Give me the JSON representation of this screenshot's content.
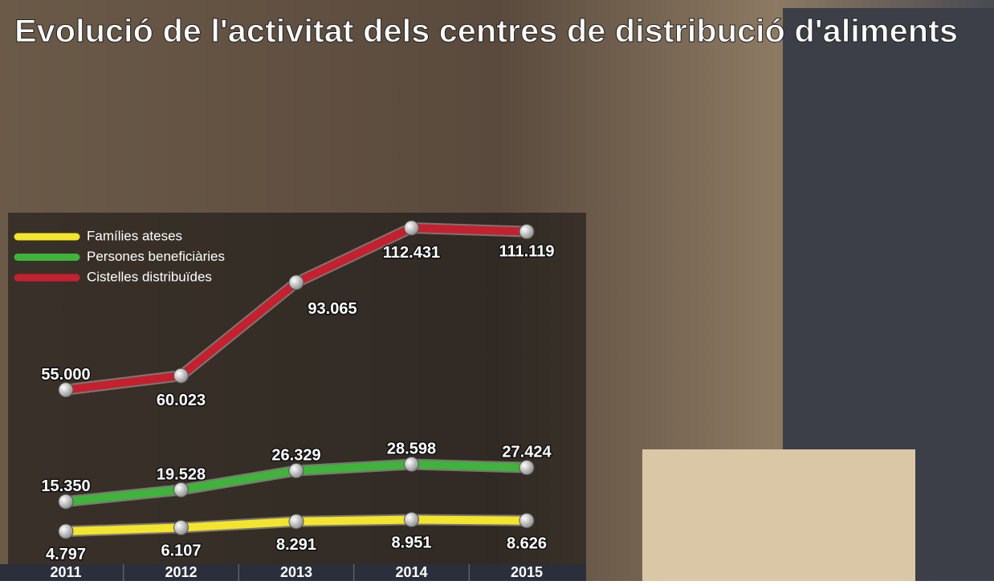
{
  "chart_data": {
    "type": "line",
    "title": "Evolució de l'activitat dels centres de distribució d'aliments",
    "categories": [
      "2011",
      "2012",
      "2013",
      "2014",
      "2015"
    ],
    "series": [
      {
        "name": "Famílies ateses",
        "color": "#f3e52c",
        "values": [
          4797,
          6107,
          8291,
          8951,
          8626
        ],
        "value_labels": [
          "4.797",
          "6.107",
          "8.291",
          "8.951",
          "8.626"
        ]
      },
      {
        "name": "Persones beneficiàries",
        "color": "#3fb33c",
        "values": [
          15350,
          19528,
          26329,
          28598,
          27424
        ],
        "value_labels": [
          "15.350",
          "19.528",
          "26.329",
          "28.598",
          "27.424"
        ]
      },
      {
        "name": "Cistelles distribuïdes",
        "color": "#c5202f",
        "values": [
          55000,
          60023,
          93065,
          112431,
          111119
        ],
        "value_labels": [
          "55.000",
          "60.023",
          "93.065",
          "112.431",
          "111.119"
        ]
      }
    ]
  }
}
